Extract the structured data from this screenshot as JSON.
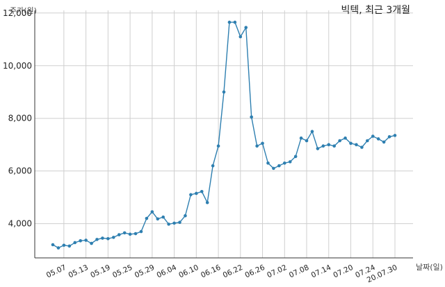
{
  "chart_data": {
    "type": "line",
    "title": "빅텍, 최근 3개월",
    "xlabel": "날짜(일)",
    "ylabel": "주가(원)",
    "ylim": [
      2700,
      12100
    ],
    "yticks": [
      4000,
      6000,
      8000,
      10000,
      12000
    ],
    "ytick_labels": [
      "4,000",
      "6,000",
      "8,000",
      "10,000",
      "12,000"
    ],
    "xtick_labels": [
      "05.07",
      "05.13",
      "05.19",
      "05.25",
      "05.29",
      "06.04",
      "06.10",
      "06.16",
      "06.22",
      "06.26",
      "07.02",
      "07.08",
      "07.14",
      "07.20",
      "07.24",
      "20.07.30"
    ],
    "xtick_indices": [
      2,
      6,
      10,
      14,
      18,
      22,
      26,
      30,
      34,
      38,
      42,
      46,
      50,
      54,
      58,
      62
    ],
    "grid": true,
    "series": [
      {
        "values": [
          3200,
          3080,
          3180,
          3150,
          3280,
          3350,
          3370,
          3250,
          3400,
          3450,
          3430,
          3480,
          3580,
          3650,
          3600,
          3620,
          3700,
          4200,
          4450,
          4180,
          4250,
          3980,
          4020,
          4050,
          4300,
          5100,
          5150,
          5220,
          4800,
          6200,
          6950,
          9000,
          11650,
          11650,
          11100,
          11450,
          8050,
          6950,
          7050,
          6300,
          6100,
          6200,
          6300,
          6350,
          6550,
          7250,
          7150,
          7500,
          6850,
          6950,
          7000,
          6950,
          7150,
          7250,
          7050,
          7000,
          6900,
          7150,
          7320,
          7220,
          7100,
          7300,
          7350
        ]
      }
    ]
  }
}
